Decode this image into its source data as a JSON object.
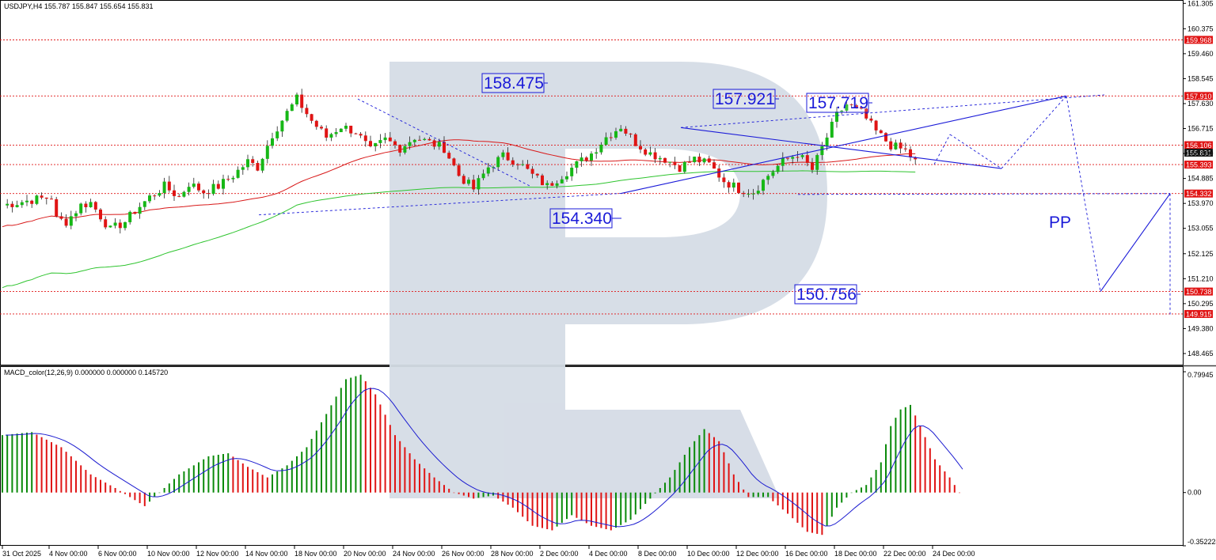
{
  "header": {
    "title": "USDJPY,H4  155.787 155.847 155.654 155.831"
  },
  "macd_header": {
    "title": "MACD_color(12,26,9) 0.000000 0.000000 0.145720"
  },
  "colors": {
    "bull": "#16b816",
    "bear": "#e01414",
    "ma_slow": "#d81818",
    "ma_fast": "#2ec42e",
    "annotation": "#1a1ad8",
    "level_line": "#e01414",
    "macd_up": "#0a8a0a",
    "macd_down": "#e01414",
    "signal": "#1c1cd0",
    "watermark": "#d5dce6"
  },
  "chart_data": [
    {
      "type": "candlestick",
      "symbol": "USDJPY",
      "timeframe": "H4",
      "ylim": [
        148.0,
        161.4
      ],
      "y_ticks": [
        "161.305",
        "160.375",
        "159.460",
        "158.545",
        "157.630",
        "156.715",
        "155.800",
        "154.885",
        "153.970",
        "153.055",
        "152.125",
        "151.210",
        "150.295",
        "149.380",
        "148.465"
      ],
      "x_ticks": [
        "31 Oct 2025",
        "4 Nov 00:00",
        "6 Nov 00:00",
        "10 Nov 00:00",
        "12 Nov 00:00",
        "14 Nov 00:00",
        "18 Nov 00:00",
        "20 Nov 00:00",
        "24 Nov 00:00",
        "26 Nov 00:00",
        "28 Nov 00:00",
        "2 Dec 00:00",
        "4 Dec 00:00",
        "8 Dec 00:00",
        "10 Dec 00:00",
        "12 Dec 00:00",
        "16 Dec 00:00",
        "18 Dec 00:00",
        "22 Dec 00:00",
        "24 Dec 00:00"
      ],
      "close_path": [
        [
          0,
          153.9
        ],
        [
          6,
          154.1
        ],
        [
          10,
          154.2
        ],
        [
          11,
          153.4
        ],
        [
          13,
          153.3
        ],
        [
          16,
          153.9
        ],
        [
          18,
          154.0
        ],
        [
          20,
          153.5
        ],
        [
          22,
          153.0
        ],
        [
          25,
          153.3
        ],
        [
          27,
          153.7
        ],
        [
          30,
          154.2
        ],
        [
          33,
          154.6
        ],
        [
          36,
          154.2
        ],
        [
          38,
          154.7
        ],
        [
          41,
          154.4
        ],
        [
          44,
          154.6
        ],
        [
          47,
          155.0
        ],
        [
          50,
          155.5
        ],
        [
          52,
          155.3
        ],
        [
          55,
          156.5
        ],
        [
          58,
          157.3
        ],
        [
          60,
          157.8
        ],
        [
          63,
          157.0
        ],
        [
          66,
          156.4
        ],
        [
          69,
          156.8
        ],
        [
          72,
          156.6
        ],
        [
          75,
          155.9
        ],
        [
          78,
          156.3
        ],
        [
          81,
          156.0
        ],
        [
          84,
          156.4
        ],
        [
          87,
          156.2
        ],
        [
          90,
          156.0
        ],
        [
          93,
          155.0
        ],
        [
          96,
          154.5
        ],
        [
          99,
          155.3
        ],
        [
          102,
          155.7
        ],
        [
          105,
          155.5
        ],
        [
          108,
          155.0
        ],
        [
          111,
          154.6
        ],
        [
          114,
          155.0
        ],
        [
          117,
          155.4
        ],
        [
          120,
          155.8
        ],
        [
          123,
          156.4
        ],
        [
          126,
          156.8
        ],
        [
          129,
          156.2
        ],
        [
          132,
          155.8
        ],
        [
          135,
          155.6
        ],
        [
          138,
          155.3
        ],
        [
          141,
          155.6
        ],
        [
          144,
          155.4
        ],
        [
          147,
          154.8
        ],
        [
          150,
          154.5
        ],
        [
          153,
          154.4
        ],
        [
          156,
          155.0
        ],
        [
          159,
          155.5
        ],
        [
          162,
          155.8
        ],
        [
          165,
          155.2
        ],
        [
          167,
          156.0
        ],
        [
          170,
          157.2
        ],
        [
          172,
          157.6
        ],
        [
          175,
          157.3
        ],
        [
          178,
          156.6
        ],
        [
          181,
          156.1
        ],
        [
          184,
          155.9
        ],
        [
          186,
          155.5
        ]
      ],
      "levels": [
        {
          "label": "159.968",
          "value": 159.968
        },
        {
          "label": "157.910",
          "value": 157.91
        },
        {
          "label": "156.106",
          "value": 156.106
        },
        {
          "label": "155.831",
          "value": 155.831
        },
        {
          "label": "155.393",
          "value": 155.393
        },
        {
          "label": "154.332",
          "value": 154.332
        },
        {
          "label": "150.738",
          "value": 150.738
        },
        {
          "label": "149.915",
          "value": 149.915
        }
      ],
      "annotations": [
        "158.475",
        "157.921",
        "157.719",
        "154.340",
        "150.756",
        "PP"
      ]
    },
    {
      "type": "bar",
      "name": "MACD_color(12,26,9)",
      "ylim": [
        -0.352224,
        0.79945
      ],
      "y_ticks": [
        "0.79945",
        "0.00",
        "-0.352224"
      ],
      "histogram_path": [
        [
          0,
          0.38
        ],
        [
          6,
          0.4
        ],
        [
          12,
          0.3
        ],
        [
          18,
          0.12
        ],
        [
          23,
          0.03
        ],
        [
          27,
          -0.05
        ],
        [
          29,
          -0.09
        ],
        [
          32,
          0.0
        ],
        [
          36,
          0.12
        ],
        [
          42,
          0.24
        ],
        [
          46,
          0.26
        ],
        [
          50,
          0.17
        ],
        [
          54,
          0.1
        ],
        [
          58,
          0.18
        ],
        [
          62,
          0.3
        ],
        [
          66,
          0.52
        ],
        [
          70,
          0.75
        ],
        [
          73,
          0.78
        ],
        [
          76,
          0.65
        ],
        [
          80,
          0.38
        ],
        [
          84,
          0.22
        ],
        [
          88,
          0.1
        ],
        [
          92,
          0.0
        ],
        [
          96,
          -0.04
        ],
        [
          100,
          -0.02
        ],
        [
          104,
          -0.1
        ],
        [
          108,
          -0.22
        ],
        [
          112,
          -0.25
        ],
        [
          116,
          -0.15
        ],
        [
          120,
          -0.22
        ],
        [
          124,
          -0.25
        ],
        [
          128,
          -0.18
        ],
        [
          132,
          -0.04
        ],
        [
          136,
          0.1
        ],
        [
          140,
          0.3
        ],
        [
          143,
          0.42
        ],
        [
          146,
          0.34
        ],
        [
          149,
          0.12
        ],
        [
          152,
          -0.03
        ],
        [
          156,
          -0.03
        ],
        [
          160,
          -0.14
        ],
        [
          164,
          -0.26
        ],
        [
          167,
          -0.28
        ],
        [
          170,
          -0.1
        ],
        [
          173,
          0.0
        ],
        [
          176,
          0.05
        ],
        [
          179,
          0.2
        ],
        [
          181,
          0.44
        ],
        [
          183,
          0.55
        ],
        [
          185,
          0.58
        ],
        [
          187,
          0.44
        ],
        [
          190,
          0.22
        ],
        [
          193,
          0.1
        ],
        [
          195,
          0.0
        ]
      ]
    }
  ]
}
